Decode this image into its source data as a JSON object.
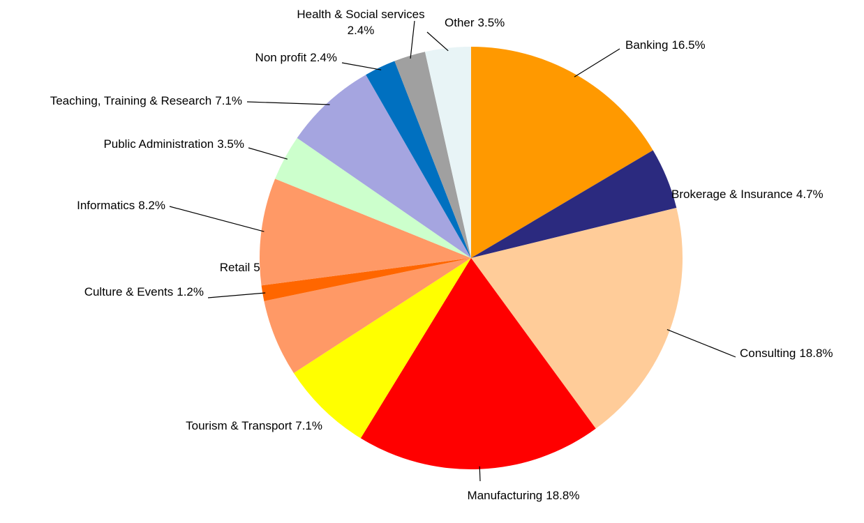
{
  "chart_data": {
    "type": "pie",
    "categories": [
      "Banking",
      "Brokerage & Insurance",
      "Consulting",
      "Manufacturing",
      "Tourism & Transport",
      "Retail",
      "Culture & Events",
      "Informatics",
      "Public Administration",
      "Teaching, Training & Research",
      "Non profit",
      "Health & Social services",
      "Other"
    ],
    "values": [
      16.5,
      4.7,
      18.8,
      18.8,
      7.1,
      5.9,
      1.2,
      8.2,
      3.5,
      7.1,
      2.4,
      2.4,
      3.5
    ],
    "value_labels": [
      "16.5%",
      "4.7%",
      "18.8%",
      "18.8%",
      "7.1%",
      "5.9%",
      "1.2%",
      "8.2%",
      "3.5%",
      "7.1%",
      "2.4%",
      "2.4%",
      "3.5%"
    ],
    "colors": [
      "#FF9900",
      "#2B2A7F",
      "#FFCC99",
      "#FF0000",
      "#FFFF00",
      "#FF9966",
      "#FF6600",
      "#FF9966",
      "#CCFFCC",
      "#A5A5E0",
      "#0070C0",
      "#A0A0A0",
      "#E8F4F6"
    ]
  }
}
